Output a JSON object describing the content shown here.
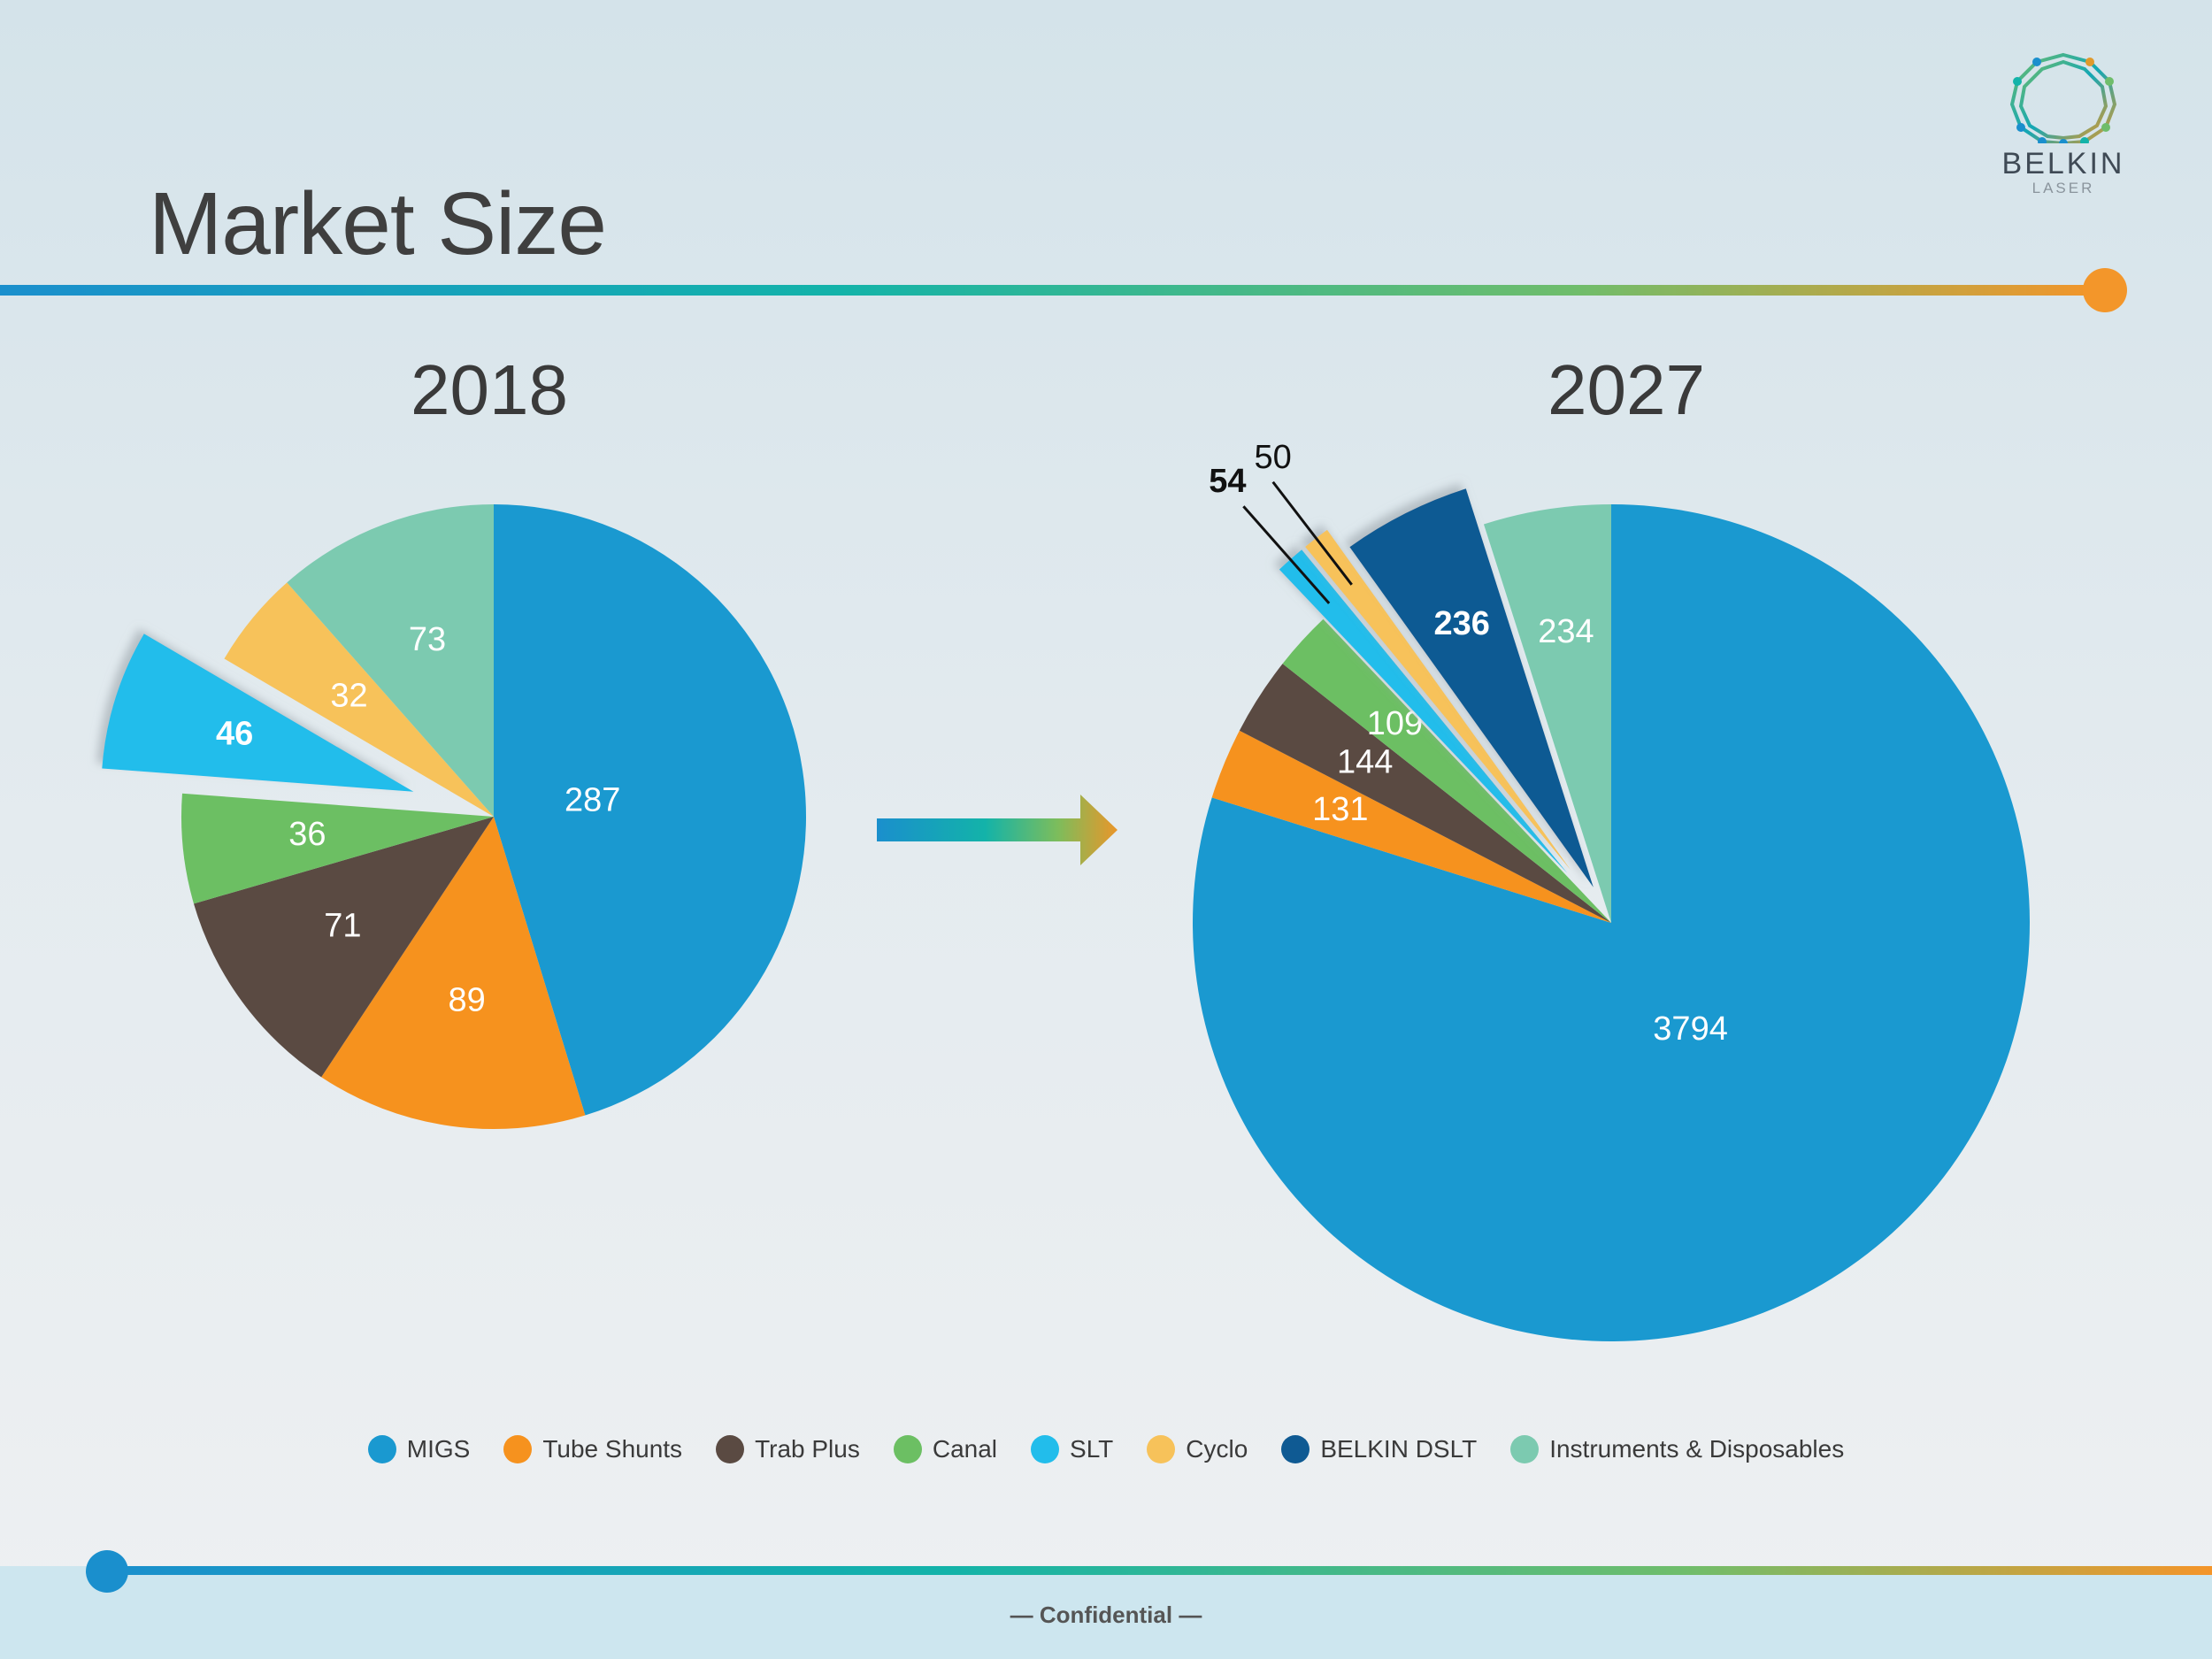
{
  "slide": {
    "title": "Market Size",
    "footer": "— Confidential —"
  },
  "logo": {
    "name": "BELKIN",
    "sub": "LASER"
  },
  "colors": {
    "MIGS": "#1a99d0",
    "Tube Shunts": "#f6921e",
    "Trab Plus": "#5a4a42",
    "Canal": "#6cbf63",
    "SLT": "#22bdeb",
    "Cyclo": "#f7c25a",
    "BELKIN DSLT": "#0f5a93",
    "Instruments & Disposables": "#7ccab0"
  },
  "chart_data": [
    {
      "type": "pie",
      "title": "2018",
      "series": [
        {
          "category": "MIGS",
          "value": 287
        },
        {
          "category": "Tube Shunts",
          "value": 89
        },
        {
          "category": "Trab Plus",
          "value": 71
        },
        {
          "category": "Canal",
          "value": 36
        },
        {
          "category": "SLT",
          "value": 46,
          "exploded": true,
          "bold_label": true
        },
        {
          "category": "Cyclo",
          "value": 32
        },
        {
          "category": "Instruments & Disposables",
          "value": 73
        }
      ]
    },
    {
      "type": "pie",
      "title": "2027",
      "series": [
        {
          "category": "MIGS",
          "value": 3794
        },
        {
          "category": "Tube Shunts",
          "value": 131
        },
        {
          "category": "Trab Plus",
          "value": 144
        },
        {
          "category": "Canal",
          "value": 109
        },
        {
          "category": "SLT",
          "value": 54,
          "exploded": true,
          "bold_label": true,
          "leader_label": true
        },
        {
          "category": "Cyclo",
          "value": 50,
          "exploded": true,
          "leader_label": true
        },
        {
          "category": "BELKIN DSLT",
          "value": 236,
          "exploded": true,
          "bold_label": true
        },
        {
          "category": "Instruments & Disposables",
          "value": 234
        }
      ]
    }
  ],
  "legend": [
    {
      "label": "MIGS",
      "color": "#1a99d0"
    },
    {
      "label": "Tube Shunts",
      "color": "#f6921e"
    },
    {
      "label": "Trab Plus",
      "color": "#5a4a42"
    },
    {
      "label": "Canal",
      "color": "#6cbf63"
    },
    {
      "label": "SLT",
      "color": "#22bdeb"
    },
    {
      "label": "Cyclo",
      "color": "#f7c25a"
    },
    {
      "label": "BELKIN DSLT",
      "color": "#0f5a93"
    },
    {
      "label": "Instruments & Disposables",
      "color": "#7ccab0"
    }
  ]
}
